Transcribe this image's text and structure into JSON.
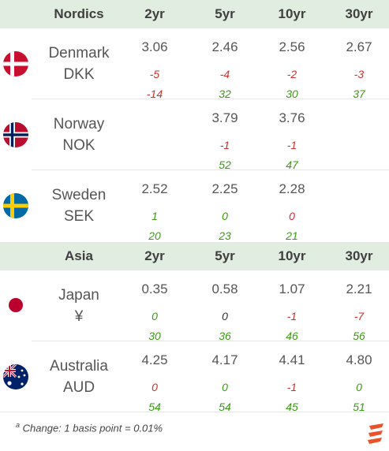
{
  "sections": [
    {
      "title": "Nordics",
      "columns": [
        "2yr",
        "5yr",
        "10yr",
        "30yr"
      ],
      "rows": [
        {
          "name": "Denmark",
          "currency": "DKK",
          "flag": "denmark-flag",
          "vals": [
            "3.06",
            "2.46",
            "2.56",
            "2.67"
          ],
          "chg1": [
            "-5",
            "-4",
            "-2",
            "-3"
          ],
          "chg2": [
            "-14",
            "32",
            "30",
            "37"
          ]
        },
        {
          "name": "Norway",
          "currency": "NOK",
          "flag": "norway-flag",
          "vals": [
            "",
            "3.79",
            "3.76",
            ""
          ],
          "chg1": [
            "",
            "-1",
            "-1",
            ""
          ],
          "chg2": [
            "",
            "52",
            "47",
            ""
          ]
        },
        {
          "name": "Sweden",
          "currency": "SEK",
          "flag": "sweden-flag",
          "vals": [
            "2.52",
            "2.25",
            "2.28",
            ""
          ],
          "chg1": [
            "1",
            "0",
            "0",
            ""
          ],
          "chg2": [
            "20",
            "23",
            "21",
            ""
          ]
        }
      ]
    },
    {
      "title": "Asia",
      "columns": [
        "2yr",
        "5yr",
        "10yr",
        "30yr"
      ],
      "rows": [
        {
          "name": "Japan",
          "currency": "¥",
          "flag": "japan-flag",
          "vals": [
            "0.35",
            "0.58",
            "1.07",
            "2.21"
          ],
          "chg1": [
            "0",
            "0",
            "-1",
            "-7"
          ],
          "chg2": [
            "30",
            "36",
            "46",
            "56"
          ]
        },
        {
          "name": "Australia",
          "currency": "AUD",
          "flag": "australia-flag",
          "vals": [
            "4.25",
            "4.17",
            "4.41",
            "4.80"
          ],
          "chg1": [
            "0",
            "0",
            "-1",
            "0"
          ],
          "chg2": [
            "54",
            "54",
            "45",
            "51"
          ]
        }
      ]
    }
  ],
  "colors": {
    "negative": "#d0312d",
    "positive": "#3a9a12",
    "zero_neutral": "#333333",
    "header_bg": "#e2ede1"
  },
  "footnote": {
    "marker": "a",
    "text": "Change: 1 basis point = 0.01%"
  },
  "logo_icon": "brand-logo-icon"
}
